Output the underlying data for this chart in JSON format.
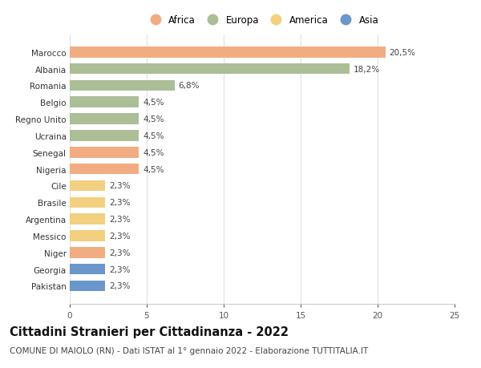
{
  "countries": [
    "Marocco",
    "Albania",
    "Romania",
    "Belgio",
    "Regno Unito",
    "Ucraina",
    "Senegal",
    "Nigeria",
    "Cile",
    "Brasile",
    "Argentina",
    "Messico",
    "Niger",
    "Georgia",
    "Pakistan"
  ],
  "values": [
    20.5,
    18.2,
    6.8,
    4.5,
    4.5,
    4.5,
    4.5,
    4.5,
    2.3,
    2.3,
    2.3,
    2.3,
    2.3,
    2.3,
    2.3
  ],
  "labels": [
    "20,5%",
    "18,2%",
    "6,8%",
    "4,5%",
    "4,5%",
    "4,5%",
    "4,5%",
    "4,5%",
    "2,3%",
    "2,3%",
    "2,3%",
    "2,3%",
    "2,3%",
    "2,3%",
    "2,3%"
  ],
  "continents": [
    "Africa",
    "Europa",
    "Europa",
    "Europa",
    "Europa",
    "Europa",
    "Africa",
    "Africa",
    "America",
    "America",
    "America",
    "America",
    "Africa",
    "Asia",
    "Asia"
  ],
  "colors": {
    "Africa": "#F2AC82",
    "Europa": "#ABBE96",
    "America": "#F2D080",
    "Asia": "#6B96CC"
  },
  "legend_order": [
    "Africa",
    "Europa",
    "America",
    "Asia"
  ],
  "xlim": [
    0,
    25
  ],
  "xticks": [
    0,
    5,
    10,
    15,
    20,
    25
  ],
  "title": "Cittadini Stranieri per Cittadinanza - 2022",
  "subtitle": "COMUNE DI MAIOLO (RN) - Dati ISTAT al 1° gennaio 2022 - Elaborazione TUTTITALIA.IT",
  "bg_color": "#ffffff",
  "grid_color": "#e0e0e0",
  "bar_height": 0.65,
  "title_fontsize": 10.5,
  "subtitle_fontsize": 7.5,
  "label_fontsize": 7.5,
  "tick_fontsize": 7.5,
  "legend_fontsize": 8.5
}
